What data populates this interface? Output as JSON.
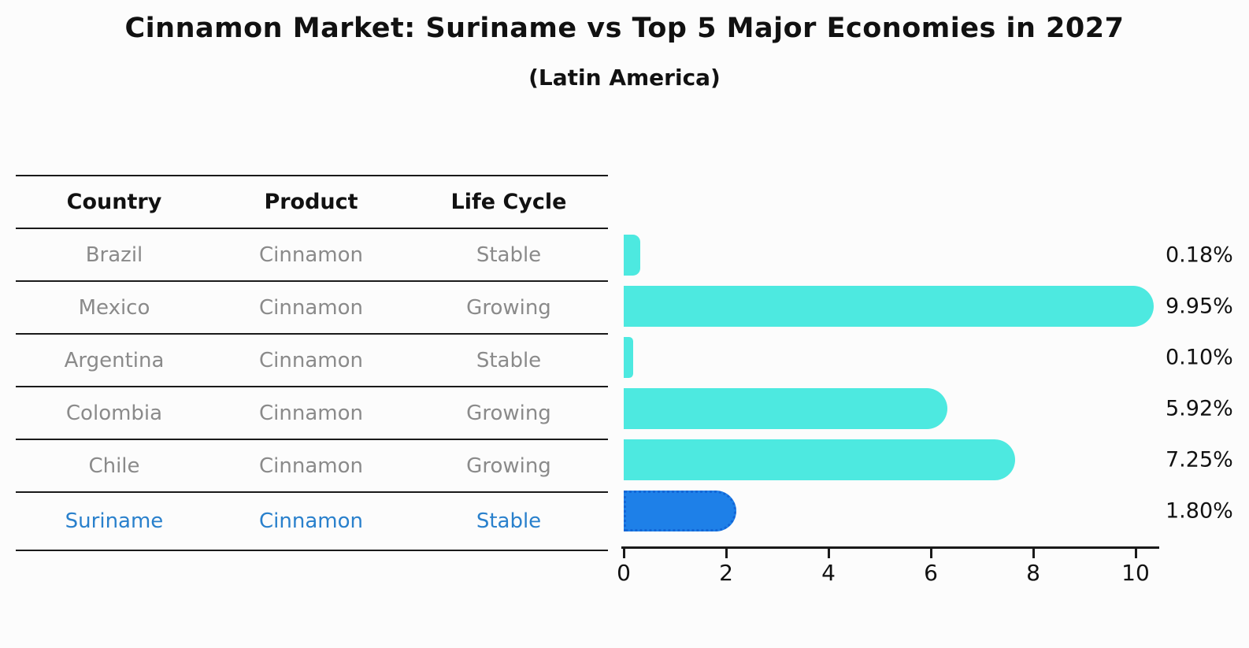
{
  "title": "Cinnamon Market: Suriname vs Top 5 Major Economies in 2027",
  "subtitle": "(Latin America)",
  "table": {
    "headers": [
      "Country",
      "Product",
      "Life Cycle"
    ],
    "rows": [
      {
        "country": "Brazil",
        "product": "Cinnamon",
        "life_cycle": "Stable",
        "highlighted": false
      },
      {
        "country": "Mexico",
        "product": "Cinnamon",
        "life_cycle": "Growing",
        "highlighted": false
      },
      {
        "country": "Argentina",
        "product": "Cinnamon",
        "life_cycle": "Stable",
        "highlighted": false
      },
      {
        "country": "Colombia",
        "product": "Cinnamon",
        "life_cycle": "Growing",
        "highlighted": false
      },
      {
        "country": "Chile",
        "product": "Cinnamon",
        "life_cycle": "Growing",
        "highlighted": false
      },
      {
        "country": "Suriname",
        "product": "Cinnamon",
        "life_cycle": "Stable",
        "highlighted": true
      }
    ]
  },
  "chart_data": {
    "type": "bar",
    "orientation": "horizontal",
    "title": "Cinnamon Market: Suriname vs Top 5 Major Economies in 2027",
    "subtitle": "(Latin America)",
    "categories": [
      "Brazil",
      "Mexico",
      "Argentina",
      "Colombia",
      "Chile",
      "Suriname"
    ],
    "values": [
      0.18,
      9.95,
      0.1,
      5.92,
      7.25,
      1.8
    ],
    "value_labels": [
      "0.18%",
      "9.95%",
      "0.10%",
      "5.92%",
      "7.25%",
      "1.80%"
    ],
    "x_ticks": [
      0,
      2,
      4,
      6,
      8,
      10
    ],
    "xlim": [
      0,
      10.5
    ],
    "xlabel": "",
    "ylabel": "",
    "grid": false,
    "legend": false,
    "highlight_category": "Suriname",
    "bar_color": "#4de9e0",
    "highlight_bar_color": "#1e80e8",
    "highlight_border_style": "dotted",
    "highlight_text_color": "#2980cc"
  },
  "colors": {
    "background": "#fcfcfc",
    "axis": "#1a1a1a",
    "table_text_muted": "#8a8a8a",
    "text": "#111111"
  }
}
